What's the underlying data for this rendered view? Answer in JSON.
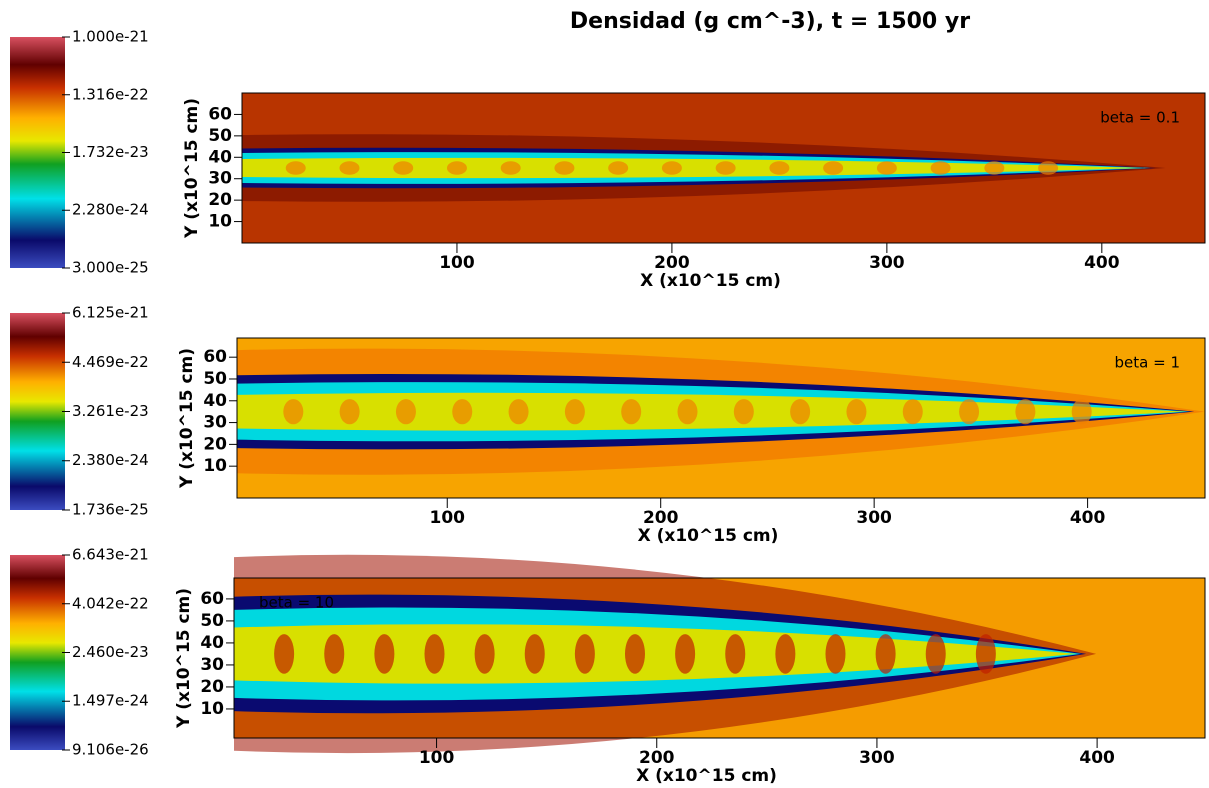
{
  "chart_data": [
    {
      "type": "heatmap",
      "title": "Densidad (g cm^-3), t = 1500 yr",
      "annotation": "beta = 0.1",
      "xlabel": "X (x10^15 cm)",
      "ylabel": "Y (x10^15 cm)",
      "xlim": [
        0,
        448
      ],
      "ylim": [
        0,
        70
      ],
      "xticks": [
        100,
        200,
        300,
        400
      ],
      "yticks": [
        10,
        20,
        30,
        40,
        50,
        60
      ],
      "colorbar": {
        "scale": "log",
        "lim": [
          3e-25,
          1e-21
        ],
        "ticks": [
          {
            "value": 1e-21,
            "label": "1.000e-21"
          },
          {
            "value": 1.316e-22,
            "label": "1.316e-22"
          },
          {
            "value": 1.732e-23,
            "label": "1.732e-23"
          },
          {
            "value": 2.28e-24,
            "label": "2.280e-24"
          },
          {
            "value": 3e-25,
            "label": "3.000e-25"
          }
        ]
      }
    },
    {
      "type": "heatmap",
      "annotation": "beta = 1",
      "xlabel": "X (x10^15 cm)",
      "ylabel": "Y (x10^15 cm)",
      "xlim": [
        1.5,
        455
      ],
      "ylim": [
        -4.6,
        68.8
      ],
      "xticks": [
        100,
        200,
        300,
        400
      ],
      "yticks": [
        10,
        20,
        30,
        40,
        50,
        60
      ],
      "colorbar": {
        "scale": "log",
        "lim": [
          1.736e-25,
          6.125e-21
        ],
        "ticks": [
          {
            "value": 6.125e-21,
            "label": "6.125e-21"
          },
          {
            "value": 4.469e-22,
            "label": "4.469e-22"
          },
          {
            "value": 3.261e-23,
            "label": "3.261e-23"
          },
          {
            "value": 2.38e-24,
            "label": "2.380e-24"
          },
          {
            "value": 1.736e-25,
            "label": "1.736e-25"
          }
        ]
      }
    },
    {
      "type": "heatmap",
      "annotation": "beta = 10",
      "xlabel": "X (x10^15 cm)",
      "ylabel": "Y (x10^15 cm)",
      "xlim": [
        8,
        449
      ],
      "ylim": [
        -3.2,
        69.5
      ],
      "xticks": [
        100,
        200,
        300,
        400
      ],
      "yticks": [
        10,
        20,
        30,
        40,
        50,
        60
      ],
      "colorbar": {
        "scale": "log",
        "lim": [
          9.106e-26,
          6.643e-21
        ],
        "ticks": [
          {
            "value": 6.643e-21,
            "label": "6.643e-21"
          },
          {
            "value": 4.042e-22,
            "label": "4.042e-22"
          },
          {
            "value": 2.46e-23,
            "label": "2.460e-23"
          },
          {
            "value": 1.497e-24,
            "label": "1.497e-24"
          },
          {
            "value": 9.106e-26,
            "label": "9.106e-26"
          }
        ]
      }
    }
  ]
}
